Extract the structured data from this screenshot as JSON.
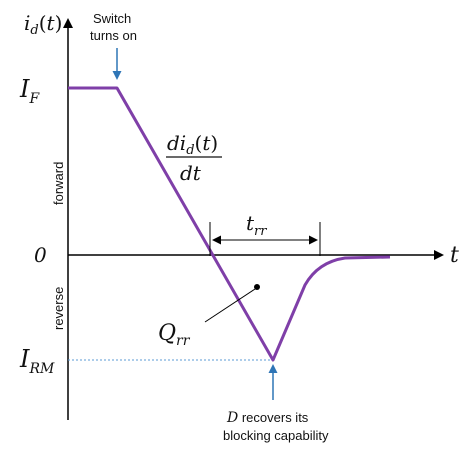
{
  "diagram": {
    "y_axis_label": "i_d(t)",
    "x_axis_label": "t",
    "forward_label": "forward",
    "reverse_label": "reverse",
    "switch_note_line1": "Switch",
    "switch_note_line2": "turns on",
    "recover_note_line1": "D recovers its",
    "recover_note_line2": "blocking capability",
    "IF_label": "I_F",
    "zero_label": "0",
    "IRM_label": "I_RM",
    "slope_numerator": "di_d(t)",
    "slope_denominator": "dt",
    "trr_label": "t_rr",
    "Qrr_label": "Q_rr",
    "colors": {
      "current_curve": "#7f3fa8",
      "arrow": "#2e75b6",
      "axis": "#000000",
      "dotted_guide": "#5b9bd5"
    }
  }
}
